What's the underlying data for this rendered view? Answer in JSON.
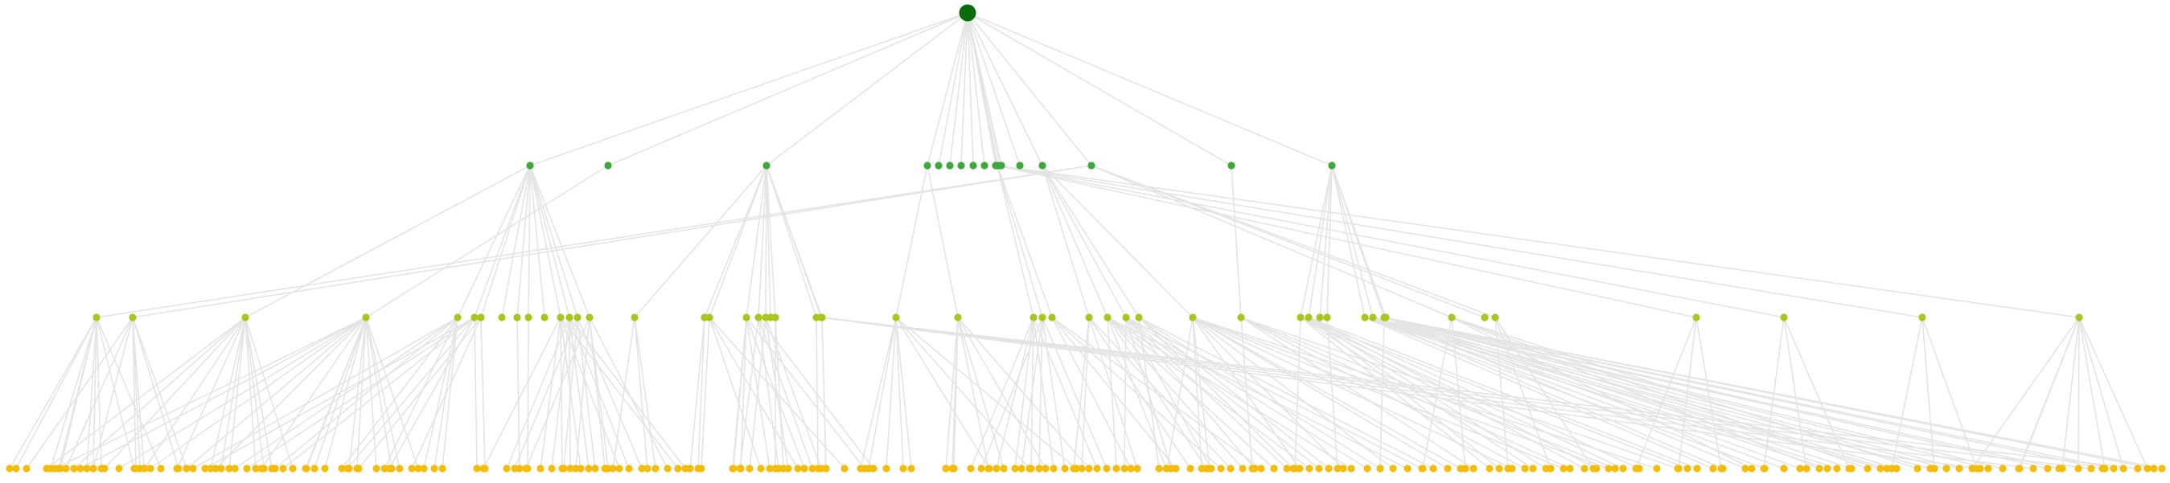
{
  "diagram": {
    "type": "tree",
    "edge_color": "#e4e4e4",
    "level_colors": [
      "#0a6b0a",
      "#3fa83a",
      "#a8c718",
      "#f5bd0b"
    ],
    "levels": [
      {
        "depth": 0,
        "node_count": 1
      },
      {
        "depth": 1,
        "node_count": 19
      },
      {
        "depth": 2,
        "node_count": 52
      },
      {
        "depth": 3,
        "node_count": 253
      }
    ]
  }
}
